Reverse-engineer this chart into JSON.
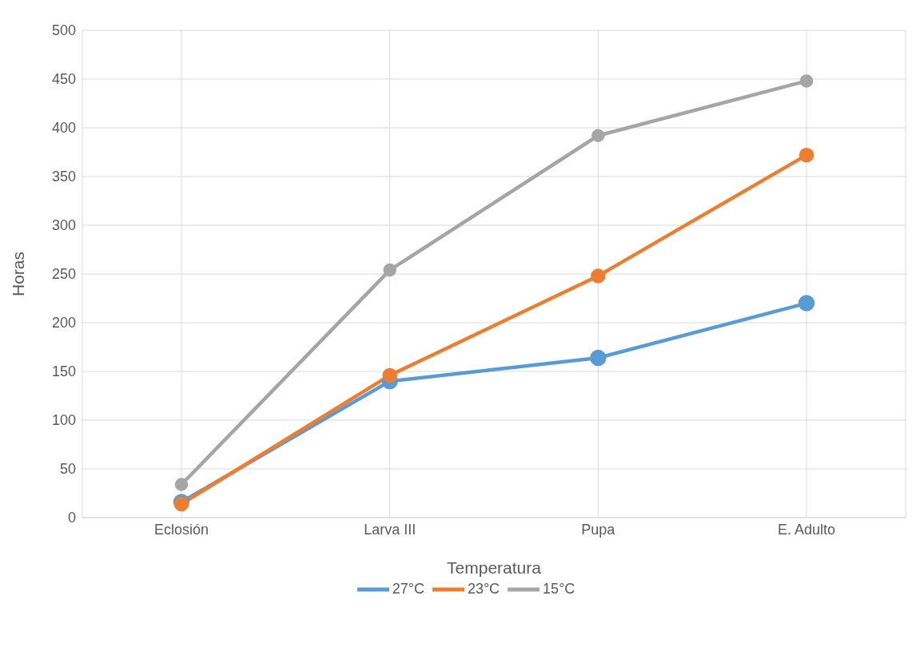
{
  "chart_data": {
    "type": "line",
    "xlabel": "Temperatura",
    "ylabel": "Horas",
    "categories": [
      "Eclosión",
      "Larva III",
      "Pupa",
      "E. Adulto"
    ],
    "series": [
      {
        "name": "27°C",
        "color": "#5b9bd5",
        "values": [
          16,
          140,
          164,
          220
        ]
      },
      {
        "name": "23°C",
        "color": "#ed7d31",
        "values": [
          14,
          146,
          248,
          372
        ]
      },
      {
        "name": "15°C",
        "color": "#a5a5a5",
        "values": [
          34,
          254,
          392,
          448
        ]
      }
    ],
    "ylim": [
      0,
      500
    ],
    "yticks": [
      0,
      50,
      100,
      150,
      200,
      250,
      300,
      350,
      400,
      450,
      500
    ],
    "grid": true,
    "legend": "bottom",
    "marker": "circle",
    "line_style": "solid"
  }
}
